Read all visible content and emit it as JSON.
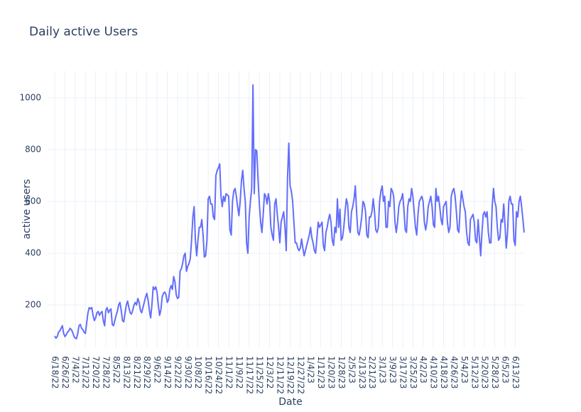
{
  "chart_data": {
    "type": "line",
    "title": "Daily active Users",
    "x_label": "Date",
    "y_label": "active users",
    "x": [
      "6/18/22",
      "6/19/22",
      "6/20/22",
      "6/21/22",
      "6/22/22",
      "6/23/22",
      "6/24/22",
      "6/25/22",
      "6/26/22",
      "6/27/22",
      "6/28/22",
      "6/29/22",
      "6/30/22",
      "7/1/22",
      "7/2/22",
      "7/3/22",
      "7/4/22",
      "7/5/22",
      "7/6/22",
      "7/7/22",
      "7/8/22",
      "7/9/22",
      "7/10/22",
      "7/11/22",
      "7/12/22",
      "7/13/22",
      "7/14/22",
      "7/15/22",
      "7/16/22",
      "7/17/22",
      "7/18/22",
      "7/19/22",
      "7/20/22",
      "7/21/22",
      "7/22/22",
      "7/23/22",
      "7/24/22",
      "7/25/22",
      "7/26/22",
      "7/27/22",
      "7/28/22",
      "7/29/22",
      "7/30/22",
      "7/31/22",
      "8/1/22",
      "8/2/22",
      "8/3/22",
      "8/4/22",
      "8/5/22",
      "8/6/22",
      "8/7/22",
      "8/8/22",
      "8/9/22",
      "8/10/22",
      "8/11/22",
      "8/12/22",
      "8/13/22",
      "8/14/22",
      "8/15/22",
      "8/16/22",
      "8/17/22",
      "8/18/22",
      "8/19/22",
      "8/20/22",
      "8/21/22",
      "8/22/22",
      "8/23/22",
      "8/24/22",
      "8/25/22",
      "8/26/22",
      "8/27/22",
      "8/28/22",
      "8/29/22",
      "8/30/22",
      "8/31/22",
      "9/1/22",
      "9/2/22",
      "9/3/22",
      "9/4/22",
      "9/5/22",
      "9/6/22",
      "9/7/22",
      "9/8/22",
      "9/9/22",
      "9/10/22",
      "9/11/22",
      "9/12/22",
      "9/13/22",
      "9/14/22",
      "9/15/22",
      "9/16/22",
      "9/17/22",
      "9/18/22",
      "9/19/22",
      "9/20/22",
      "9/21/22",
      "9/22/22",
      "9/23/22",
      "9/24/22",
      "9/25/22",
      "9/26/22",
      "9/27/22",
      "9/28/22",
      "9/29/22",
      "9/30/22",
      "10/1/22",
      "10/2/22",
      "10/3/22",
      "10/4/22",
      "10/5/22",
      "10/6/22",
      "10/7/22",
      "10/8/22",
      "10/9/22",
      "10/10/22",
      "10/11/22",
      "10/12/22",
      "10/13/22",
      "10/14/22",
      "10/15/22",
      "10/16/22",
      "10/17/22",
      "10/18/22",
      "10/19/22",
      "10/20/22",
      "10/21/22",
      "10/22/22",
      "10/23/22",
      "10/24/22",
      "10/25/22",
      "10/26/22",
      "10/27/22",
      "10/28/22",
      "10/29/22",
      "10/30/22",
      "10/31/22",
      "11/1/22",
      "11/2/22",
      "11/3/22",
      "11/4/22",
      "11/5/22",
      "11/6/22",
      "11/7/22",
      "11/8/22",
      "11/9/22",
      "11/10/22",
      "11/11/22",
      "11/12/22",
      "11/13/22",
      "11/14/22",
      "11/15/22",
      "11/16/22",
      "11/17/22",
      "11/18/22",
      "11/19/22",
      "11/20/22",
      "11/21/22",
      "11/22/22",
      "11/23/22",
      "11/24/22",
      "11/25/22",
      "11/26/22",
      "11/27/22",
      "11/28/22",
      "11/29/22",
      "11/30/22",
      "12/1/22",
      "12/2/22",
      "12/3/22",
      "12/4/22",
      "12/5/22",
      "12/6/22",
      "12/7/22",
      "12/8/22",
      "12/9/22",
      "12/10/22",
      "12/11/22",
      "12/12/22",
      "12/13/22",
      "12/14/22",
      "12/15/22",
      "12/16/22",
      "12/17/22",
      "12/18/22",
      "12/19/22",
      "12/20/22",
      "12/21/22",
      "12/22/22",
      "12/23/22",
      "12/24/22",
      "12/25/22",
      "12/26/22",
      "12/27/22",
      "12/28/22",
      "12/29/22",
      "12/30/22",
      "12/31/22",
      "1/1/23",
      "1/2/23",
      "1/3/23",
      "1/4/23",
      "1/5/23",
      "1/6/23",
      "1/7/23",
      "1/8/23",
      "1/9/23",
      "1/10/23",
      "1/11/23",
      "1/12/23",
      "1/13/23",
      "1/14/23",
      "1/15/23",
      "1/16/23",
      "1/17/23",
      "1/18/23",
      "1/19/23",
      "1/20/23",
      "1/21/23",
      "1/22/23",
      "1/23/23",
      "1/24/23",
      "1/25/23",
      "1/26/23",
      "1/27/23",
      "1/28/23",
      "1/29/23",
      "1/30/23",
      "1/31/23",
      "2/1/23",
      "2/2/23",
      "2/3/23",
      "2/4/23",
      "2/5/23",
      "2/6/23",
      "2/7/23",
      "2/8/23",
      "2/9/23",
      "2/10/23",
      "2/11/23",
      "2/12/23",
      "2/13/23",
      "2/14/23",
      "2/15/23",
      "2/16/23",
      "2/17/23",
      "2/18/23",
      "2/19/23",
      "2/20/23",
      "2/21/23",
      "2/22/23",
      "2/23/23",
      "2/24/23",
      "2/25/23",
      "2/26/23",
      "2/27/23",
      "2/28/23",
      "3/1/23",
      "3/2/23",
      "3/3/23",
      "3/4/23",
      "3/5/23",
      "3/6/23",
      "3/7/23",
      "3/8/23",
      "3/9/23",
      "3/10/23",
      "3/11/23",
      "3/12/23",
      "3/13/23",
      "3/14/23",
      "3/15/23",
      "3/16/23",
      "3/17/23",
      "3/18/23",
      "3/19/23",
      "3/20/23",
      "3/21/23",
      "3/22/23",
      "3/23/23",
      "3/24/23",
      "3/25/23",
      "3/26/23",
      "3/27/23",
      "3/28/23",
      "3/29/23",
      "3/30/23",
      "3/31/23",
      "4/1/23",
      "4/2/23",
      "4/3/23",
      "4/4/23",
      "4/5/23",
      "4/6/23",
      "4/7/23",
      "4/8/23",
      "4/9/23",
      "4/10/23",
      "4/11/23",
      "4/12/23",
      "4/13/23",
      "4/14/23",
      "4/15/23",
      "4/16/23",
      "4/17/23",
      "4/18/23",
      "4/19/23",
      "4/20/23",
      "4/21/23",
      "4/22/23",
      "4/23/23",
      "4/24/23",
      "4/25/23",
      "4/26/23",
      "4/27/23",
      "4/28/23",
      "4/29/23",
      "4/30/23",
      "5/1/23",
      "5/2/23",
      "5/3/23",
      "5/4/23",
      "5/5/23",
      "5/6/23",
      "5/7/23",
      "5/8/23",
      "5/9/23",
      "5/10/23",
      "5/11/23",
      "5/12/23",
      "5/13/23",
      "5/14/23",
      "5/15/23",
      "5/16/23",
      "5/17/23",
      "5/18/23",
      "5/19/23",
      "5/20/23",
      "5/21/23",
      "5/22/23",
      "5/23/23",
      "5/24/23",
      "5/25/23",
      "5/26/23",
      "5/27/23",
      "5/28/23",
      "5/29/23",
      "5/30/23",
      "5/31/23",
      "6/1/23",
      "6/2/23",
      "6/3/23",
      "6/4/23",
      "6/5/23",
      "6/6/23",
      "6/7/23",
      "6/8/23",
      "6/9/23",
      "6/10/23",
      "6/11/23",
      "6/12/23",
      "6/13/23",
      "6/14/23",
      "6/15/23",
      "6/16/23",
      "6/17/23",
      "6/18/23",
      "6/19/23",
      "6/20/23"
    ],
    "series": [
      {
        "name": "active users",
        "color": "#636efa",
        "values": [
          80,
          72,
          78,
          95,
          100,
          110,
          120,
          90,
          78,
          85,
          95,
          100,
          110,
          105,
          95,
          80,
          72,
          70,
          90,
          120,
          125,
          110,
          105,
          95,
          90,
          130,
          170,
          190,
          185,
          190,
          160,
          140,
          150,
          170,
          175,
          160,
          170,
          175,
          140,
          120,
          180,
          190,
          170,
          180,
          185,
          125,
          120,
          140,
          160,
          175,
          200,
          210,
          180,
          140,
          135,
          170,
          200,
          215,
          190,
          170,
          165,
          180,
          200,
          210,
          200,
          225,
          210,
          180,
          170,
          190,
          210,
          230,
          245,
          220,
          180,
          150,
          200,
          270,
          260,
          270,
          250,
          200,
          160,
          180,
          230,
          245,
          250,
          240,
          210,
          220,
          260,
          275,
          260,
          310,
          290,
          240,
          225,
          230,
          330,
          340,
          360,
          390,
          400,
          330,
          350,
          360,
          380,
          450,
          540,
          580,
          450,
          390,
          450,
          500,
          500,
          530,
          470,
          385,
          390,
          450,
          610,
          620,
          590,
          590,
          540,
          530,
          700,
          720,
          730,
          745,
          620,
          580,
          620,
          600,
          630,
          625,
          620,
          490,
          470,
          600,
          640,
          650,
          620,
          580,
          545,
          600,
          680,
          720,
          650,
          600,
          440,
          400,
          540,
          600,
          650,
          1050,
          630,
          800,
          795,
          680,
          590,
          520,
          480,
          550,
          630,
          620,
          590,
          630,
          600,
          500,
          470,
          450,
          590,
          610,
          550,
          500,
          440,
          520,
          540,
          560,
          500,
          410,
          690,
          825,
          660,
          640,
          600,
          520,
          440,
          440,
          420,
          410,
          420,
          455,
          420,
          390,
          410,
          430,
          450,
          470,
          500,
          460,
          440,
          410,
          400,
          460,
          520,
          500,
          510,
          520,
          430,
          410,
          480,
          500,
          530,
          550,
          520,
          450,
          430,
          500,
          480,
          610,
          500,
          570,
          450,
          460,
          500,
          560,
          610,
          590,
          500,
          480,
          560,
          580,
          610,
          660,
          560,
          480,
          470,
          500,
          540,
          600,
          590,
          560,
          470,
          460,
          540,
          540,
          560,
          610,
          560,
          490,
          480,
          500,
          600,
          640,
          660,
          600,
          620,
          500,
          500,
          600,
          580,
          650,
          640,
          620,
          520,
          480,
          520,
          580,
          600,
          610,
          630,
          570,
          490,
          480,
          580,
          610,
          600,
          650,
          620,
          560,
          500,
          470,
          550,
          600,
          610,
          620,
          600,
          520,
          490,
          520,
          580,
          600,
          620,
          580,
          510,
          500,
          650,
          600,
          620,
          580,
          530,
          510,
          580,
          590,
          600,
          520,
          480,
          500,
          620,
          640,
          650,
          620,
          560,
          490,
          480,
          580,
          640,
          610,
          580,
          560,
          480,
          440,
          430,
          530,
          540,
          550,
          520,
          450,
          440,
          530,
          460,
          390,
          480,
          550,
          560,
          540,
          560,
          480,
          440,
          440,
          580,
          650,
          600,
          580,
          500,
          450,
          460,
          530,
          520,
          590,
          510,
          420,
          480,
          600,
          620,
          590,
          590,
          450,
          430,
          560,
          540,
          600,
          620,
          580,
          530,
          480
        ]
      }
    ],
    "xlim": [
      "6/18/22",
      "6/20/23"
    ],
    "xticks": [
      "6/18/22",
      "6/26/22",
      "7/4/22",
      "7/12/22",
      "7/20/22",
      "7/28/22",
      "8/5/22",
      "8/13/22",
      "8/21/22",
      "8/29/22",
      "9/6/22",
      "9/14/22",
      "9/22/22",
      "9/30/22",
      "10/8/22",
      "10/16/22",
      "10/24/22",
      "11/1/22",
      "11/9/22",
      "11/17/22",
      "11/25/22",
      "12/3/22",
      "12/11/22",
      "12/19/22",
      "12/27/22",
      "1/4/23",
      "1/12/23",
      "1/20/23",
      "1/28/23",
      "2/5/23",
      "2/13/23",
      "2/21/23",
      "3/1/23",
      "3/9/23",
      "3/17/23",
      "3/25/23",
      "4/2/23",
      "4/10/23",
      "4/18/23",
      "4/26/23",
      "5/4/23",
      "5/12/23",
      "5/20/23",
      "5/28/23",
      "6/5/23",
      "6/13/23"
    ],
    "ylim": [
      36,
      1104
    ],
    "yticks": [
      200,
      400,
      600,
      800,
      1000
    ],
    "grid": true
  }
}
